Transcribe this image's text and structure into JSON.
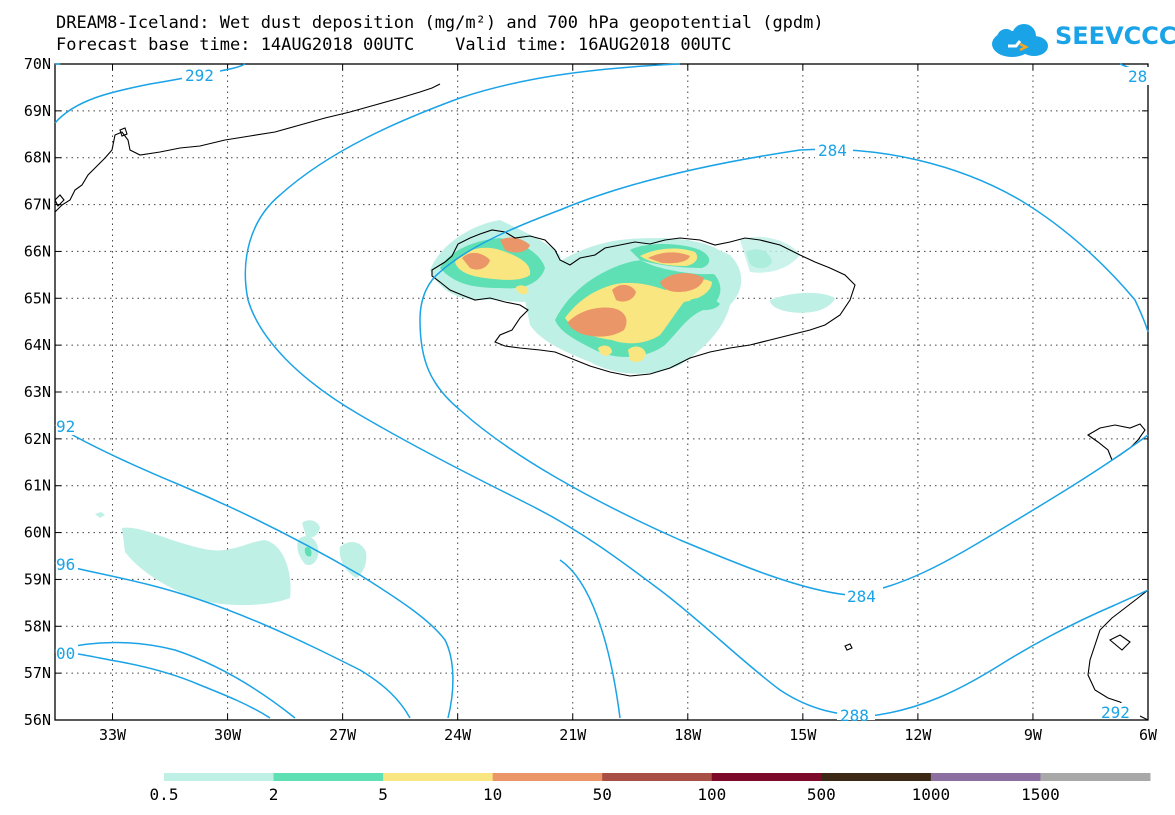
{
  "title": {
    "line1": "DREAM8-Iceland: Wet dust deposition (mg/m²) and 700 hPa geopotential (gpdm)",
    "line2": "Forecast base time: 14AUG2018 00UTC    Valid time: 16AUG2018 00UTC"
  },
  "logo_text": "SEEVCCC",
  "axes": {
    "lat_labels": [
      "70N",
      "69N",
      "68N",
      "67N",
      "66N",
      "65N",
      "64N",
      "63N",
      "62N",
      "61N",
      "60N",
      "59N",
      "58N",
      "57N",
      "56N"
    ],
    "lon_labels": [
      "33W",
      "30W",
      "27W",
      "24W",
      "21W",
      "18W",
      "15W",
      "12W",
      "9W",
      "6W"
    ]
  },
  "contour_labels": [
    "292",
    "28",
    "284",
    "284",
    "288",
    "292",
    "92",
    "96",
    "00"
  ],
  "colorbar": {
    "labels": [
      "0.5",
      "2",
      "5",
      "10",
      "50",
      "100",
      "500",
      "1000",
      "1500"
    ],
    "colors": [
      "#bff0e6",
      "#5ee0b4",
      "#fae680",
      "#eb9669",
      "#a85046",
      "#7d0a2a",
      "#3c2814",
      "#8c6ea0",
      "#a8a8a8"
    ]
  },
  "colors": {
    "contour": "#1aa3e6",
    "logo": "#1aa3e6"
  }
}
